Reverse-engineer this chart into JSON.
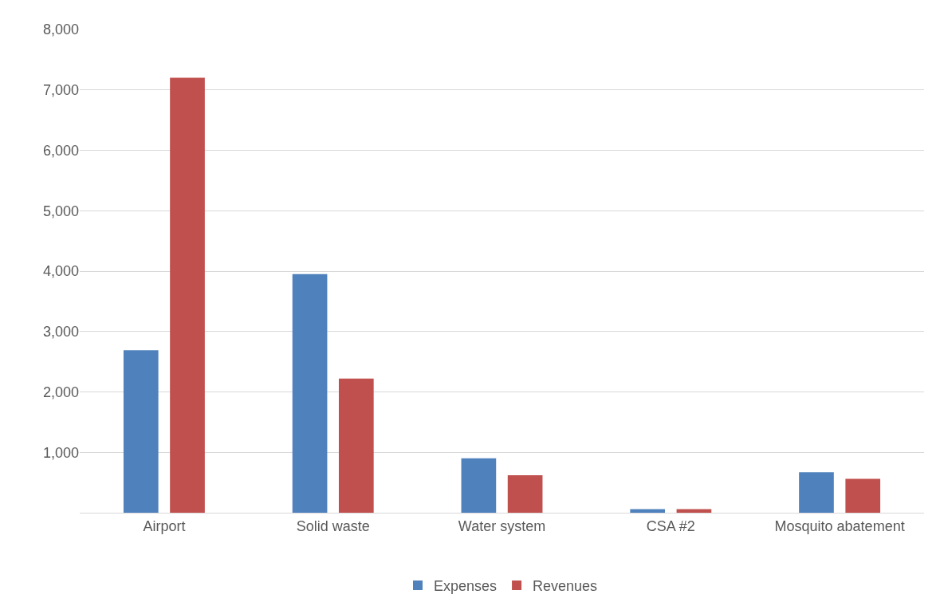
{
  "chart_data": {
    "type": "bar",
    "categories": [
      "Airport",
      "Solid waste",
      "Water system",
      "CSA #2",
      "Mosquito abatement"
    ],
    "series": [
      {
        "name": "Expenses",
        "color": "#4f81bd",
        "values": [
          2690,
          3950,
          900,
          60,
          670
        ]
      },
      {
        "name": "Revenues",
        "color": "#c0504d",
        "values": [
          7200,
          2220,
          620,
          60,
          560
        ]
      }
    ],
    "ylim": [
      0,
      8000
    ],
    "yticks": [
      {
        "value": 0,
        "label": null
      },
      {
        "value": 1000,
        "label": "1,000"
      },
      {
        "value": 2000,
        "label": "2,000"
      },
      {
        "value": 3000,
        "label": "3,000"
      },
      {
        "value": 4000,
        "label": "4,000"
      },
      {
        "value": 5000,
        "label": "5,000"
      },
      {
        "value": 6000,
        "label": "6,000"
      },
      {
        "value": 7000,
        "label": "7,000"
      },
      {
        "value": 8000,
        "label": "8,000"
      }
    ],
    "grid": true,
    "legend": "bottom"
  }
}
